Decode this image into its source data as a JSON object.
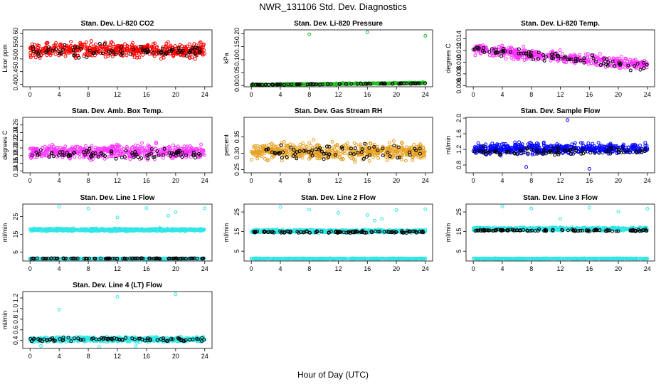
{
  "figure": {
    "title": "NWR_131106  Std. Dev. Diagnostics",
    "xlabel": "Hour of Day (UTC)"
  },
  "chart_data": [
    {
      "type": "scatter",
      "title": "Stan. Dev. Li-820 CO2",
      "ylabel": "Licor ppm",
      "xlim": [
        -1,
        25
      ],
      "ylim": [
        0.39,
        0.615
      ],
      "xticks": [
        0,
        4,
        8,
        12,
        16,
        20,
        24
      ],
      "yticks": [
        {
          "v": 0.4,
          "t": "0.40"
        },
        {
          "v": 0.45,
          "t": "0.45"
        },
        {
          "v": 0.5,
          "t": "0.50"
        },
        {
          "v": 0.55,
          "t": "0.55"
        },
        {
          "v": 0.6,
          "t": "0.60"
        }
      ],
      "series": [
        {
          "color": "#ff0000",
          "count": 520,
          "mode": "band",
          "center": 0.535,
          "spread": 0.045,
          "xmin": 0,
          "xmax": 24
        },
        {
          "color": "#000000",
          "count": 85,
          "mode": "band",
          "center": 0.53,
          "spread": 0.04,
          "xmin": 0,
          "xmax": 24
        }
      ]
    },
    {
      "type": "scatter",
      "title": "Stan. Dev. Li-820 Pressure",
      "ylabel": "kPa",
      "xlim": [
        -1,
        25
      ],
      "ylim": [
        -0.005,
        0.215
      ],
      "xticks": [
        0,
        4,
        8,
        12,
        16,
        20,
        24
      ],
      "yticks": [
        {
          "v": 0.0,
          "t": "0.00"
        },
        {
          "v": 0.05,
          "t": "0.05"
        },
        {
          "v": 0.1,
          "t": "0.10"
        },
        {
          "v": 0.15,
          "t": "0.15"
        },
        {
          "v": 0.2,
          "t": "0.20"
        }
      ],
      "series": [
        {
          "color": "#22bb22",
          "count": 420,
          "mode": "trend",
          "start": 0.002,
          "end": 0.01,
          "spread": 0.004,
          "xmin": 0,
          "xmax": 24
        },
        {
          "color": "#000000",
          "count": 80,
          "mode": "trend",
          "start": 0.003,
          "end": 0.008,
          "spread": 0.003,
          "xmin": 0,
          "xmax": 24
        },
        {
          "color": "#22bb22",
          "mode": "points",
          "points": [
            [
              8,
              0.198
            ],
            [
              16,
              0.206
            ],
            [
              24,
              0.192
            ]
          ]
        }
      ]
    },
    {
      "type": "scatter",
      "title": "Stan. Dev. Li-820 Temp.",
      "ylabel": "degrees C",
      "xlim": [
        -1,
        25
      ],
      "ylim": [
        0.0058,
        0.0155
      ],
      "xticks": [
        0,
        4,
        8,
        12,
        16,
        20,
        24
      ],
      "yticks": [
        {
          "v": 0.006,
          "t": "0.006"
        },
        {
          "v": 0.008,
          "t": "0.008"
        },
        {
          "v": 0.01,
          "t": "0.010"
        },
        {
          "v": 0.012,
          "t": "0.012"
        },
        {
          "v": 0.014,
          "t": "0.014"
        }
      ],
      "series": [
        {
          "color": "#ff33ff",
          "count": 480,
          "mode": "trend",
          "start": 0.0122,
          "end": 0.0095,
          "spread": 0.0014,
          "xmin": 0,
          "xmax": 24
        },
        {
          "color": "#000000",
          "count": 85,
          "mode": "trend",
          "start": 0.0122,
          "end": 0.0092,
          "spread": 0.0012,
          "xmin": 0,
          "xmax": 24
        }
      ]
    },
    {
      "type": "scatter",
      "title": "Stan. Dev. Amb. Box Temp.",
      "ylabel": "degrees C",
      "xlim": [
        -1,
        25
      ],
      "ylim": [
        0.135,
        0.28
      ],
      "xticks": [
        0,
        4,
        8,
        12,
        16,
        20,
        24
      ],
      "yticks": [
        {
          "v": 0.14,
          "t": "0.14"
        },
        {
          "v": 0.16,
          "t": "0.16"
        },
        {
          "v": 0.18,
          "t": "0.18"
        },
        {
          "v": 0.2,
          "t": "0.20"
        },
        {
          "v": 0.22,
          "t": "0.22"
        },
        {
          "v": 0.24,
          "t": "0.24"
        },
        {
          "v": 0.26,
          "t": "0.26"
        }
      ],
      "series": [
        {
          "color": "#ff33ff",
          "count": 520,
          "mode": "band",
          "center": 0.19,
          "spread": 0.028,
          "xmin": 0,
          "xmax": 24
        },
        {
          "color": "#000000",
          "count": 85,
          "mode": "band",
          "center": 0.185,
          "spread": 0.02,
          "xmin": 0,
          "xmax": 24
        }
      ]
    },
    {
      "type": "scatter",
      "title": "Stan. Dev. Gas Stream RH",
      "ylabel": "percent",
      "xlim": [
        -1,
        25
      ],
      "ylim": [
        0.24,
        0.41
      ],
      "xticks": [
        0,
        4,
        8,
        12,
        16,
        20,
        24
      ],
      "yticks": [
        {
          "v": 0.25,
          "t": "0.25"
        },
        {
          "v": 0.3,
          "t": "0.30"
        },
        {
          "v": 0.35,
          "t": "0.35"
        }
      ],
      "series": [
        {
          "color": "#e6a020",
          "count": 560,
          "mode": "band",
          "center": 0.305,
          "spread": 0.04,
          "xmin": 0,
          "xmax": 24
        },
        {
          "color": "#000000",
          "count": 70,
          "mode": "band",
          "center": 0.305,
          "spread": 0.035,
          "xmin": 0,
          "xmax": 24
        }
      ]
    },
    {
      "type": "scatter",
      "title": "Stan. Dev. Sample Flow",
      "ylabel": "ml/min",
      "xlim": [
        -1,
        25
      ],
      "ylim": [
        0.6,
        2.02
      ],
      "xticks": [
        0,
        4,
        8,
        12,
        16,
        20,
        24
      ],
      "yticks": [
        {
          "v": 0.8,
          "t": "0.8"
        },
        {
          "v": 1.2,
          "t": "1.2"
        },
        {
          "v": 1.6,
          "t": "1.6"
        },
        {
          "v": 2.0,
          "t": "2.0"
        }
      ],
      "series": [
        {
          "color": "#0000ff",
          "count": 520,
          "mode": "band",
          "center": 1.22,
          "spread": 0.22,
          "xmin": 0,
          "xmax": 24
        },
        {
          "color": "#000000",
          "count": 85,
          "mode": "band",
          "center": 1.15,
          "spread": 0.15,
          "xmin": 0,
          "xmax": 24
        },
        {
          "color": "#0000ff",
          "mode": "points",
          "points": [
            [
              13,
              1.95
            ],
            [
              16,
              0.7
            ],
            [
              7.3,
              0.75
            ]
          ]
        }
      ]
    },
    {
      "type": "scatter",
      "title": "Stan. Dev. Line 1 Flow",
      "ylabel": "ml/min",
      "xlim": [
        -1,
        25
      ],
      "ylim": [
        0,
        32
      ],
      "xticks": [
        0,
        4,
        8,
        12,
        16,
        20,
        24
      ],
      "yticks": [
        {
          "v": 5,
          "t": "5"
        },
        {
          "v": 15,
          "t": "15"
        },
        {
          "v": 25,
          "t": "25"
        }
      ],
      "series": [
        {
          "color": "#33e6e6",
          "count": 700,
          "mode": "band",
          "center": 17.5,
          "spread": 1.2,
          "xmin": 0,
          "xmax": 24
        },
        {
          "color": "#33e6e6",
          "count": 500,
          "mode": "band",
          "center": 1.3,
          "spread": 0.3,
          "xmin": 0,
          "xmax": 24
        },
        {
          "color": "#000000",
          "count": 110,
          "mode": "band",
          "center": 1.4,
          "spread": 0.3,
          "xmin": 0,
          "xmax": 24
        },
        {
          "color": "#33e6e6",
          "mode": "points",
          "points": [
            [
              4,
              30.5
            ],
            [
              8,
              29.5
            ],
            [
              12,
              24.5
            ],
            [
              16,
              29.8
            ],
            [
              19,
              25.5
            ],
            [
              20,
              27.5
            ],
            [
              24,
              29.6
            ]
          ]
        }
      ]
    },
    {
      "type": "scatter",
      "title": "Stan. Dev. Line 2 Flow",
      "ylabel": "ml/min",
      "xlim": [
        -1,
        25
      ],
      "ylim": [
        0,
        29
      ],
      "xticks": [
        0,
        4,
        8,
        12,
        16,
        20,
        24
      ],
      "yticks": [
        {
          "v": 5,
          "t": "5"
        },
        {
          "v": 15,
          "t": "15"
        },
        {
          "v": 25,
          "t": "25"
        }
      ],
      "series": [
        {
          "color": "#33e6e6",
          "count": 700,
          "mode": "band",
          "center": 15.2,
          "spread": 1.2,
          "xmin": 0,
          "xmax": 24
        },
        {
          "color": "#33e6e6",
          "count": 500,
          "mode": "band",
          "center": 1.2,
          "spread": 0.3,
          "xmin": 0,
          "xmax": 24
        },
        {
          "color": "#000000",
          "count": 110,
          "mode": "band",
          "center": 14.8,
          "spread": 0.9,
          "xmin": 0,
          "xmax": 24
        },
        {
          "color": "#33e6e6",
          "mode": "points",
          "points": [
            [
              4,
              27.5
            ],
            [
              8,
              26.2
            ],
            [
              12,
              24.5
            ],
            [
              16,
              23.5
            ],
            [
              17,
              20.5
            ],
            [
              18,
              21.5
            ],
            [
              20,
              26
            ],
            [
              24,
              26.4
            ]
          ]
        }
      ]
    },
    {
      "type": "scatter",
      "title": "Stan. Dev. Line 3 Flow",
      "ylabel": "ml/min",
      "xlim": [
        -1,
        25
      ],
      "ylim": [
        0,
        29
      ],
      "xticks": [
        0,
        4,
        8,
        12,
        16,
        20,
        24
      ],
      "yticks": [
        {
          "v": 5,
          "t": "5"
        },
        {
          "v": 15,
          "t": "15"
        },
        {
          "v": 25,
          "t": "25"
        }
      ],
      "series": [
        {
          "color": "#33e6e6",
          "count": 700,
          "mode": "band",
          "center": 16.3,
          "spread": 1.3,
          "xmin": 0,
          "xmax": 24
        },
        {
          "color": "#33e6e6",
          "count": 500,
          "mode": "band",
          "center": 1.2,
          "spread": 0.3,
          "xmin": 0,
          "xmax": 24
        },
        {
          "color": "#000000",
          "count": 110,
          "mode": "band",
          "center": 15.6,
          "spread": 0.9,
          "xmin": 0,
          "xmax": 24
        },
        {
          "color": "#33e6e6",
          "mode": "points",
          "points": [
            [
              4,
              27.8
            ],
            [
              8,
              26.8
            ],
            [
              12,
              21.5
            ],
            [
              16,
              27.2
            ],
            [
              20,
              25.2
            ],
            [
              24,
              26.6
            ]
          ]
        }
      ]
    },
    {
      "type": "scatter",
      "title": "Stan. Dev. Line 4 (LT) Flow",
      "ylabel": "ml/min",
      "xlim": [
        -1,
        25
      ],
      "ylim": [
        0.25,
        1.32
      ],
      "xticks": [
        0,
        4,
        8,
        12,
        16,
        20,
        24
      ],
      "yticks": [
        {
          "v": 0.4,
          "t": "0.4"
        },
        {
          "v": 0.6,
          "t": "0.6"
        },
        {
          "v": 0.8,
          "t": "0.8"
        },
        {
          "v": 1.0,
          "t": "1.0"
        },
        {
          "v": 1.2,
          "t": "1.2"
        }
      ],
      "series": [
        {
          "color": "#33e6e6",
          "count": 650,
          "mode": "band",
          "center": 0.42,
          "spread": 0.07,
          "xmin": 0,
          "xmax": 24
        },
        {
          "color": "#000000",
          "count": 85,
          "mode": "band",
          "center": 0.42,
          "spread": 0.06,
          "xmin": 0,
          "xmax": 24
        },
        {
          "color": "#33e6e6",
          "mode": "points",
          "points": [
            [
              4,
              0.98
            ],
            [
              12,
              1.22
            ],
            [
              20,
              1.27
            ],
            [
              1.5,
              0.3
            ],
            [
              9.5,
              0.28
            ],
            [
              14.5,
              0.29
            ]
          ]
        }
      ]
    }
  ]
}
